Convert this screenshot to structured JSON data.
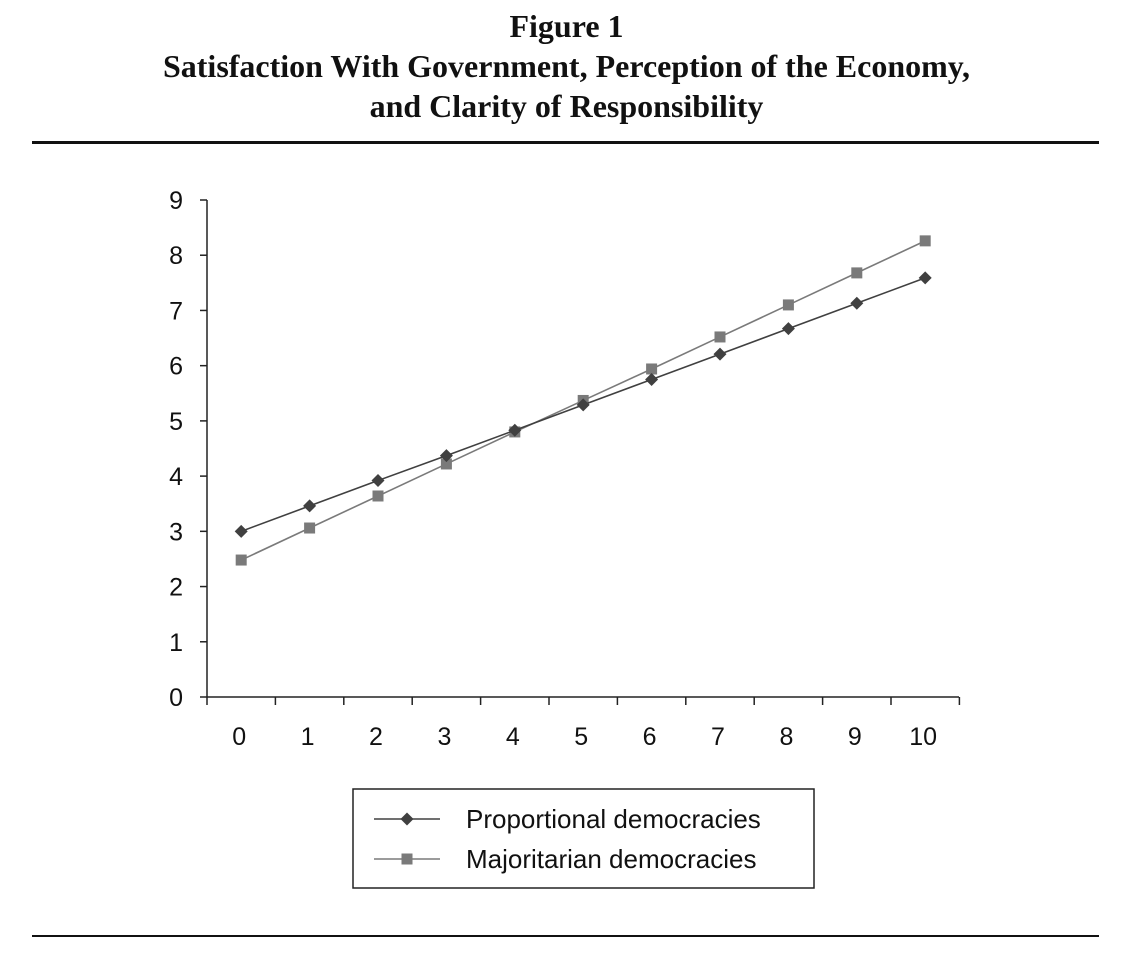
{
  "figure": {
    "label": "Figure 1",
    "title_line1": "Satisfaction With Government, Perception of the Economy,",
    "title_line2": "and Clarity of Responsibility"
  },
  "chart_data": {
    "type": "line",
    "title": "Satisfaction With Government, Perception of the Economy, and Clarity of Responsibility",
    "xlabel": "",
    "ylabel": "",
    "x": [
      0,
      1,
      2,
      3,
      4,
      5,
      6,
      7,
      8,
      9,
      10
    ],
    "xlim": [
      0,
      10
    ],
    "ylim": [
      0,
      9
    ],
    "yticks": [
      0,
      1,
      2,
      3,
      4,
      5,
      6,
      7,
      8,
      9
    ],
    "grid": false,
    "legend_position": "bottom-center",
    "series": [
      {
        "name": "Proportional democracies",
        "marker": "diamond",
        "color": "#404040",
        "values": [
          3.0,
          3.46,
          3.92,
          4.37,
          4.83,
          5.29,
          5.75,
          6.21,
          6.67,
          7.13,
          7.59
        ]
      },
      {
        "name": "Majoritarian democracies",
        "marker": "square",
        "color": "#7a7a7a",
        "values": [
          2.48,
          3.06,
          3.64,
          4.22,
          4.8,
          5.37,
          5.94,
          6.52,
          7.1,
          7.68,
          8.26
        ]
      }
    ]
  }
}
